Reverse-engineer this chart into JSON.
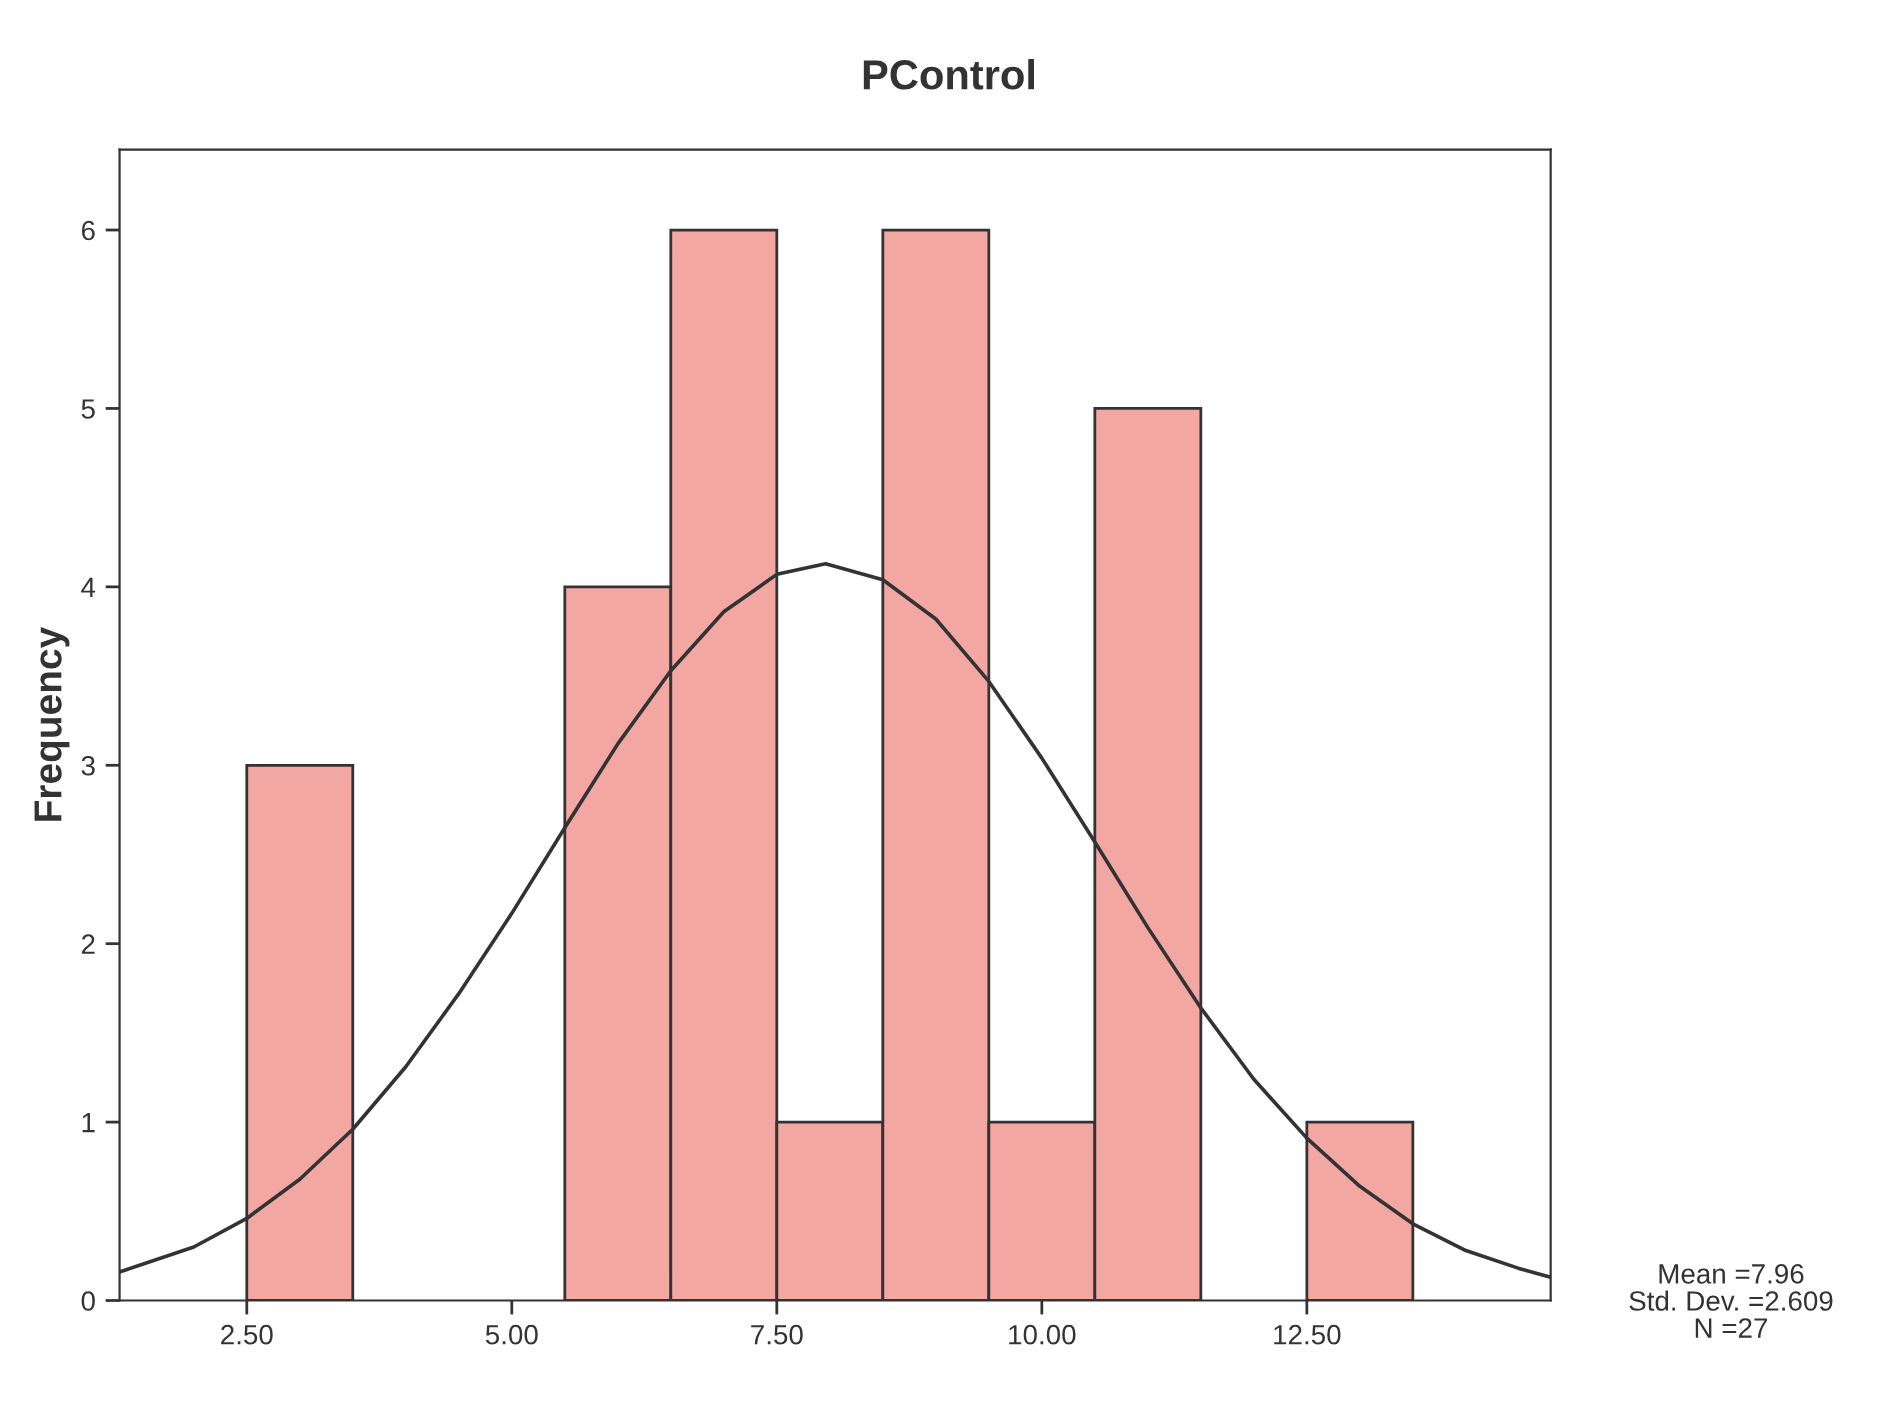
{
  "chart_data": {
    "type": "histogram",
    "title": "PControl",
    "ylabel": "Frequency",
    "bins": [
      2.5,
      3.5,
      4.5,
      5.5,
      6.5,
      7.5,
      8.5,
      9.5,
      10.5,
      11.5,
      12.5,
      13.5
    ],
    "values": [
      3,
      0,
      0,
      4,
      6,
      1,
      6,
      1,
      5,
      0,
      1
    ],
    "color": "#f2a7a3",
    "series": [
      {
        "type": "line",
        "color": "#333333",
        "x": [
          1.3,
          2,
          2.5,
          3,
          3.5,
          4,
          4.5,
          5,
          5.5,
          6,
          6.5,
          7,
          7.5,
          7.96,
          8.5,
          9,
          9.5,
          10,
          10.5,
          11,
          11.5,
          12,
          12.5,
          13,
          13.5,
          14,
          14.5,
          14.8
        ],
        "values": [
          0.16,
          0.3,
          0.46,
          0.68,
          0.96,
          1.31,
          1.72,
          2.17,
          2.65,
          3.12,
          3.53,
          3.86,
          4.07,
          4.13,
          4.04,
          3.82,
          3.47,
          3.04,
          2.57,
          2.09,
          1.64,
          1.24,
          0.91,
          0.64,
          0.43,
          0.28,
          0.18,
          0.13
        ]
      }
    ],
    "xlim": [
      1.3,
      14.8
    ],
    "ylim": [
      0,
      6.45
    ],
    "xticks": [
      {
        "value": 2.5,
        "label": "2.50"
      },
      {
        "value": 5,
        "label": "5.00"
      },
      {
        "value": 7.5,
        "label": "7.50"
      },
      {
        "value": 10,
        "label": "10.00"
      },
      {
        "value": 12.5,
        "label": "12.50"
      }
    ],
    "yticks": [
      0,
      1,
      2,
      3,
      4,
      5,
      6
    ],
    "grid": false,
    "legend": false,
    "annotations": [
      "Mean =7.96",
      "Std. Dev. =2.609",
      "N =27"
    ]
  }
}
